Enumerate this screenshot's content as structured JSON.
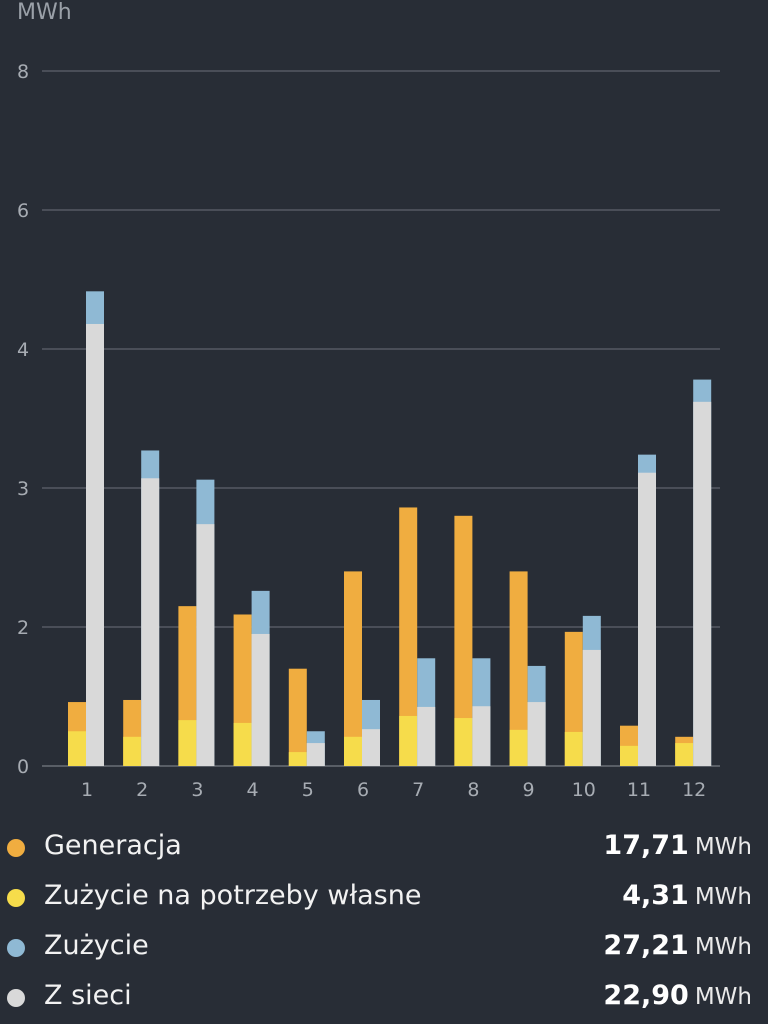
{
  "chart_data": {
    "type": "bar",
    "unit_label": "MWh",
    "categories": [
      "1",
      "2",
      "3",
      "4",
      "5",
      "6",
      "7",
      "8",
      "9",
      "10",
      "11",
      "12"
    ],
    "y_tick_labels": [
      "0",
      "2",
      "3",
      "4",
      "6",
      "8"
    ],
    "grid": true,
    "series": [
      {
        "name": "Generacja",
        "color": "#f0ad40",
        "values": [
          0.92,
          0.95,
          2.15,
          2.09,
          1.4,
          2.4,
          2.86,
          2.8,
          2.4,
          1.93,
          0.58,
          0.42
        ]
      },
      {
        "name": "Zużycie na potrzeby własne",
        "color": "#f6dc4b",
        "values": [
          0.5,
          0.42,
          0.66,
          0.62,
          0.2,
          0.42,
          0.72,
          0.69,
          0.52,
          0.49,
          0.29,
          0.33
        ]
      },
      {
        "name": "Zużycie",
        "color": "#8fb9d4",
        "values": [
          4.83,
          3.27,
          3.06,
          2.26,
          0.5,
          0.95,
          1.55,
          1.55,
          1.44,
          2.08,
          3.24,
          3.78
        ]
      },
      {
        "name": "Z sieci",
        "color": "#d9d9d9",
        "values": [
          4.36,
          3.07,
          2.74,
          1.9,
          0.33,
          0.53,
          0.85,
          0.86,
          0.92,
          1.67,
          3.11,
          3.62
        ]
      }
    ]
  },
  "legend": [
    {
      "label": "Generacja",
      "value": "17,71",
      "unit": "MWh",
      "color": "#f0ad40"
    },
    {
      "label": "Zużycie na potrzeby własne",
      "value": "4,31",
      "unit": "MWh",
      "color": "#f6dc4b"
    },
    {
      "label": "Zużycie",
      "value": "27,21",
      "unit": "MWh",
      "color": "#8fb9d4"
    },
    {
      "label": "Z sieci",
      "value": "22,90",
      "unit": "MWh",
      "color": "#d9d9d9"
    }
  ]
}
